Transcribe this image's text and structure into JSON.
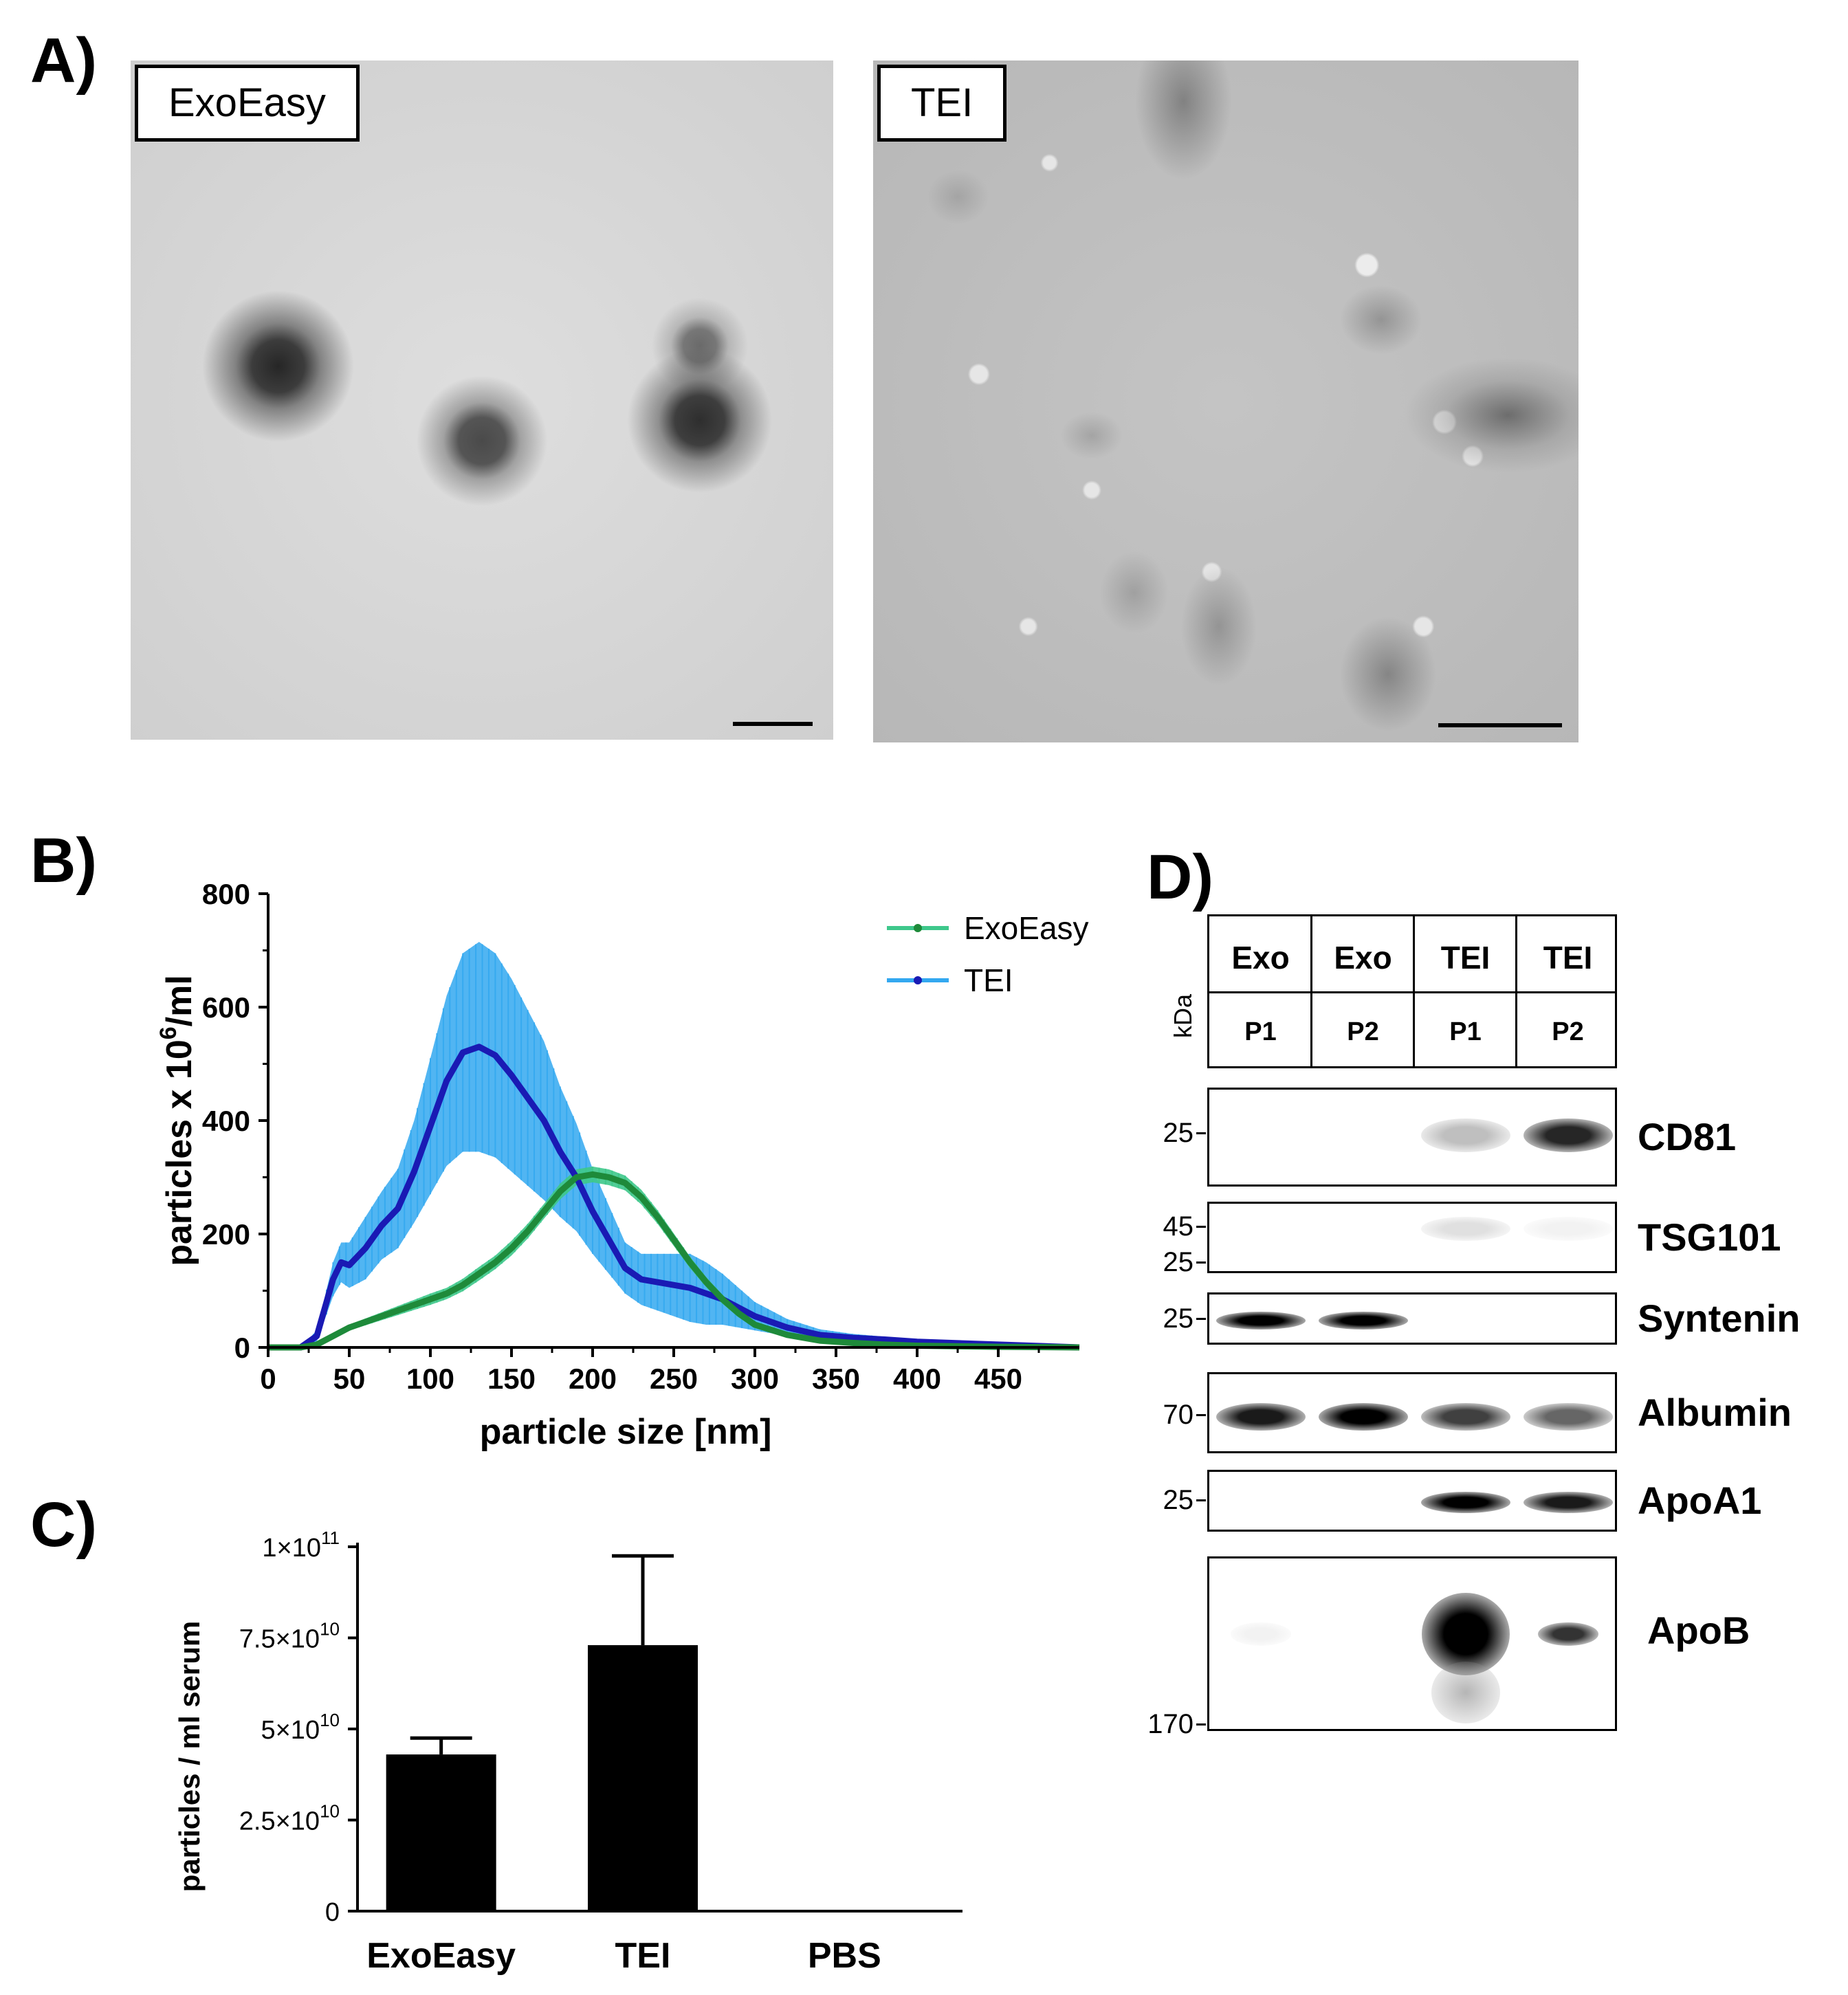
{
  "figure": {
    "panels": {
      "A": {
        "letter": "A)",
        "images": [
          {
            "label": "ExoEasy"
          },
          {
            "label": "TEI"
          }
        ]
      },
      "B": {
        "letter": "B)"
      },
      "C": {
        "letter": "C)"
      },
      "D": {
        "letter": "D)"
      }
    }
  },
  "chart_data": [
    {
      "panel": "B",
      "type": "line",
      "xlabel": "particle size [nm]",
      "ylabel": "particles x 10^6/ml",
      "xlim": [
        0,
        500
      ],
      "ylim": [
        0,
        800
      ],
      "xticks": [
        "0",
        "50",
        "100",
        "150",
        "200",
        "250",
        "300",
        "350",
        "400",
        "450"
      ],
      "yticks": [
        "0",
        "200",
        "400",
        "600",
        "800"
      ],
      "legend_position": "top-right",
      "colors": {
        "ExoEasy": "#1e8a3a",
        "ExoEasy_band": "#3ec88b",
        "TEI": "#1a1ab4",
        "TEI_band": "#33a8f0"
      },
      "series": [
        {
          "name": "ExoEasy",
          "x": [
            0,
            20,
            30,
            40,
            50,
            60,
            70,
            80,
            90,
            100,
            110,
            120,
            130,
            140,
            150,
            160,
            170,
            180,
            190,
            200,
            210,
            220,
            230,
            240,
            250,
            260,
            270,
            280,
            290,
            300,
            320,
            340,
            360,
            380,
            400,
            450,
            500
          ],
          "y": [
            0,
            0,
            5,
            20,
            35,
            45,
            55,
            65,
            75,
            85,
            95,
            110,
            130,
            150,
            175,
            205,
            240,
            275,
            300,
            305,
            300,
            290,
            265,
            230,
            190,
            150,
            115,
            85,
            60,
            40,
            22,
            12,
            8,
            5,
            3,
            1,
            0
          ],
          "err": [
            0,
            0,
            2,
            4,
            5,
            6,
            7,
            8,
            9,
            10,
            10,
            11,
            12,
            12,
            13,
            13,
            13,
            14,
            14,
            14,
            14,
            13,
            13,
            12,
            11,
            10,
            9,
            8,
            7,
            6,
            5,
            4,
            3,
            2,
            2,
            1,
            0
          ]
        },
        {
          "name": "TEI",
          "x": [
            0,
            20,
            30,
            40,
            45,
            50,
            60,
            70,
            80,
            90,
            100,
            110,
            120,
            130,
            140,
            150,
            160,
            170,
            180,
            190,
            200,
            210,
            220,
            230,
            240,
            250,
            260,
            270,
            280,
            290,
            300,
            320,
            340,
            360,
            380,
            400,
            450,
            500
          ],
          "y": [
            0,
            0,
            20,
            120,
            150,
            145,
            175,
            215,
            245,
            310,
            390,
            470,
            520,
            530,
            515,
            480,
            440,
            400,
            345,
            300,
            240,
            190,
            140,
            120,
            115,
            110,
            105,
            95,
            85,
            70,
            55,
            35,
            22,
            17,
            14,
            10,
            5,
            0
          ],
          "err": [
            0,
            0,
            10,
            30,
            35,
            40,
            55,
            60,
            70,
            90,
            120,
            150,
            175,
            185,
            180,
            170,
            155,
            140,
            115,
            95,
            75,
            60,
            45,
            45,
            50,
            55,
            60,
            55,
            45,
            35,
            25,
            15,
            10,
            7,
            5,
            4,
            2,
            0
          ]
        }
      ]
    },
    {
      "panel": "C",
      "type": "bar",
      "ylabel": "particles / ml serum",
      "categories": [
        "ExoEasy",
        "TEI",
        "PBS"
      ],
      "values": [
        43000000000.0,
        73000000000.0,
        0
      ],
      "errors": [
        4500000000.0,
        24500000000.0,
        0
      ],
      "ylim": [
        0,
        100000000000.0
      ],
      "ytick_values": [
        0,
        25000000000.0,
        50000000000.0,
        75000000000.0,
        100000000000.0
      ],
      "ytick_labels": [
        {
          "base": "0",
          "exp": ""
        },
        {
          "base": "2.5×10",
          "exp": "10"
        },
        {
          "base": "5×10",
          "exp": "10"
        },
        {
          "base": "7.5×10",
          "exp": "10"
        },
        {
          "base": "1×10",
          "exp": "11"
        }
      ],
      "bar_color": "#000000"
    }
  ],
  "western_blot": {
    "kda_label": "kDa",
    "lanes": [
      {
        "sample": "Exo",
        "pool": "P1"
      },
      {
        "sample": "Exo",
        "pool": "P2"
      },
      {
        "sample": "TEI",
        "pool": "P1"
      },
      {
        "sample": "TEI",
        "pool": "P2"
      }
    ],
    "blots": [
      {
        "protein": "CD81",
        "markers": [
          "25"
        ],
        "intensity": [
          0.0,
          0.0,
          0.25,
          0.85
        ]
      },
      {
        "protein": "TSG101",
        "markers": [
          "45",
          "25"
        ],
        "intensity": [
          0.0,
          0.0,
          0.12,
          0.05
        ]
      },
      {
        "protein": "Syntenin",
        "markers": [
          "25"
        ],
        "intensity": [
          1.0,
          1.0,
          0.0,
          0.0
        ]
      },
      {
        "protein": "Albumin",
        "markers": [
          "70"
        ],
        "intensity": [
          0.9,
          1.0,
          0.75,
          0.6
        ]
      },
      {
        "protein": "ApoA1",
        "markers": [
          "25"
        ],
        "intensity": [
          0.0,
          0.0,
          1.0,
          0.9
        ]
      },
      {
        "protein": "ApoB",
        "markers": [
          "170"
        ],
        "intensity": [
          0.05,
          0.0,
          1.0,
          0.8
        ]
      }
    ]
  }
}
